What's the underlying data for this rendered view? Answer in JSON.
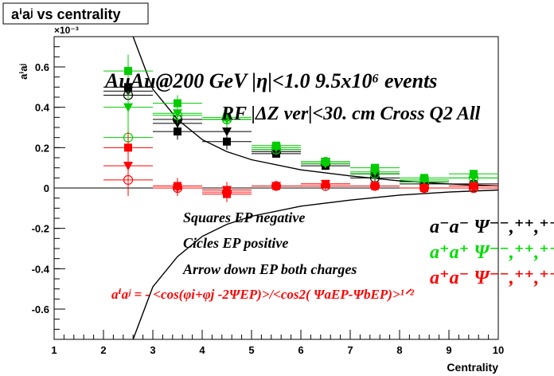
{
  "chart_data": {
    "type": "scatter",
    "title": "aⁱaʲ vs centrality",
    "xlabel": "Centrality",
    "ylabel": "aⁱaʲ",
    "y_multiplier": "×10⁻³",
    "xlim": [
      1,
      10
    ],
    "ylim": [
      -0.75,
      0.75
    ],
    "x_ticks": [
      "1",
      "2",
      "3",
      "4",
      "5",
      "6",
      "7",
      "8",
      "9",
      "10"
    ],
    "y_ticks": [
      "-0.6",
      "-0.4",
      "-0.2",
      "0",
      "0.2",
      "0.4",
      "0.6"
    ],
    "grid": false,
    "x": [
      2.5,
      3.5,
      4.5,
      5.5,
      6.5,
      7.5,
      8.5,
      9.5
    ],
    "series": [
      {
        "marker": "square",
        "color": "#000000",
        "values": [
          0.5,
          0.28,
          0.23,
          0.17,
          0.11,
          0.07,
          0.03,
          0.02
        ]
      },
      {
        "marker": "circle-open",
        "color": "#000000",
        "values": [
          0.46,
          0.34,
          0.34,
          0.18,
          0.12,
          0.05,
          0.02,
          0.0
        ]
      },
      {
        "marker": "triangle-down",
        "color": "#000000",
        "values": [
          0.48,
          0.32,
          0.28,
          0.19,
          0.13,
          0.07,
          0.03,
          0.01
        ]
      },
      {
        "marker": "square",
        "color": "#00cc00",
        "values": [
          0.58,
          0.42,
          0.35,
          0.21,
          0.13,
          0.1,
          0.05,
          0.07
        ]
      },
      {
        "marker": "circle-open",
        "color": "#00cc00",
        "values": [
          0.25,
          0.36,
          0.34,
          0.19,
          0.13,
          0.07,
          0.03,
          0.05
        ]
      },
      {
        "marker": "triangle-down",
        "color": "#00cc00",
        "values": [
          0.4,
          0.37,
          0.34,
          0.2,
          0.12,
          0.08,
          0.04,
          0.05
        ]
      },
      {
        "marker": "square",
        "color": "#ff0000",
        "values": [
          0.2,
          0.01,
          -0.03,
          0.01,
          0.02,
          0.01,
          0.0,
          0.01
        ]
      },
      {
        "marker": "circle-open",
        "color": "#ff0000",
        "values": [
          0.04,
          0.0,
          -0.02,
          0.01,
          0.01,
          0.01,
          0.0,
          0.0
        ]
      },
      {
        "marker": "triangle-down",
        "color": "#ff0000",
        "values": [
          0.11,
          0.0,
          -0.01,
          0.01,
          0.02,
          0.01,
          0.0,
          0.0
        ]
      }
    ],
    "curves": [
      {
        "name": "upper",
        "color": "#000000",
        "points": [
          [
            2.6,
            0.75
          ],
          [
            3.0,
            0.49
          ],
          [
            3.5,
            0.34
          ],
          [
            4.0,
            0.24
          ],
          [
            4.5,
            0.18
          ],
          [
            5.0,
            0.14
          ],
          [
            6.0,
            0.09
          ],
          [
            7.0,
            0.06
          ],
          [
            8.0,
            0.035
          ],
          [
            9.0,
            0.02
          ],
          [
            10.0,
            0.01
          ]
        ]
      },
      {
        "name": "lower",
        "color": "#000000",
        "points": [
          [
            2.6,
            -0.75
          ],
          [
            3.0,
            -0.49
          ],
          [
            3.5,
            -0.34
          ],
          [
            4.0,
            -0.24
          ],
          [
            4.5,
            -0.18
          ],
          [
            5.0,
            -0.14
          ],
          [
            6.0,
            -0.09
          ],
          [
            7.0,
            -0.06
          ],
          [
            8.0,
            -0.035
          ],
          [
            9.0,
            -0.02
          ],
          [
            10.0,
            -0.01
          ]
        ]
      }
    ]
  },
  "annotations": {
    "line1": "AuAu@200 GeV |η|<1.0 9.5x10⁶ events",
    "line2": "RF |ΔZ ver|<30. cm Cross Q2 All",
    "squares": "Squares EP negative",
    "circles": "Cicles EP positive",
    "arrows": "Arrow down EP both charges",
    "formula": "aⁱaʲ = - <cos(φi+φj -2ΨEP)>/<cos2( ΨaEP-ΨbEP)>¹ᐟ²"
  },
  "legend": [
    {
      "label": "a⁻a⁻  Ψ⁻⁻,⁺⁺,⁺⁻",
      "color": "#000000"
    },
    {
      "label": "a⁺a⁺  Ψ⁻⁻,⁺⁺,⁺⁻",
      "color": "#00dd00"
    },
    {
      "label": "a⁺a⁻  Ψ⁻⁻,⁺⁺,⁺⁻",
      "color": "#ff0000"
    }
  ]
}
